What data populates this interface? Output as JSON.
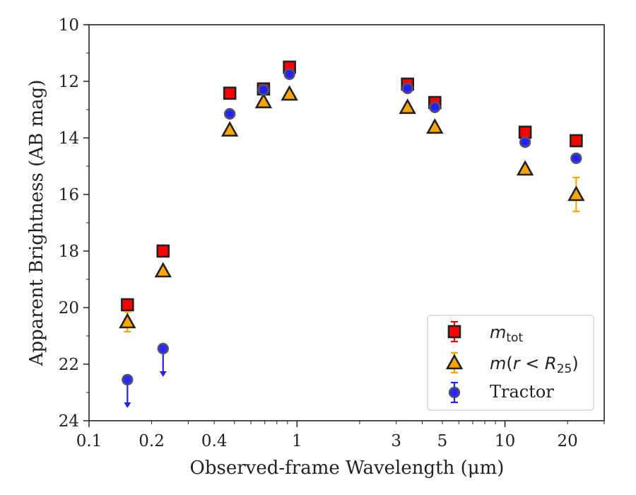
{
  "chart_data": {
    "type": "scatter",
    "xlabel": "Observed-frame Wavelength (μm)",
    "ylabel": "Apparent Brightness (AB mag)",
    "xscale": "log",
    "xlim": [
      0.1,
      30
    ],
    "ylim": [
      24,
      10
    ],
    "y_inverted": true,
    "x_ticks": [
      0.1,
      0.2,
      0.4,
      1,
      3,
      5,
      10,
      20
    ],
    "x_tick_labels": [
      "0.1",
      "0.2",
      "0.4",
      "1",
      "3",
      "5",
      "10",
      "20"
    ],
    "y_ticks": [
      10,
      12,
      14,
      16,
      18,
      20,
      22,
      24
    ],
    "y_tick_labels": [
      "10",
      "12",
      "14",
      "16",
      "18",
      "20",
      "22",
      "24"
    ],
    "grid": false,
    "legend_position": "lower-right",
    "colors": {
      "accent_red": "#ff0000",
      "accent_orange": "#ffa500",
      "accent_blue": "#2020ff",
      "axes": "#222222"
    },
    "series": [
      {
        "name": "m_tot",
        "legend_label": "mtot",
        "marker": "square",
        "color": "#ff0000",
        "errcolor": "#ff0000",
        "points": [
          {
            "x": 0.153,
            "y": 19.9,
            "err": 0.05
          },
          {
            "x": 0.227,
            "y": 18.0,
            "err": 0.05
          },
          {
            "x": 0.475,
            "y": 12.42,
            "err": 0.05
          },
          {
            "x": 0.69,
            "y": 12.27,
            "err": 0.05
          },
          {
            "x": 0.92,
            "y": 11.5,
            "err": 0.05
          },
          {
            "x": 3.4,
            "y": 12.1,
            "err": 0.05
          },
          {
            "x": 4.6,
            "y": 12.75,
            "err": 0.05
          },
          {
            "x": 12.5,
            "y": 13.8,
            "err": 0.05
          },
          {
            "x": 22.0,
            "y": 14.1,
            "err": 0.05
          }
        ]
      },
      {
        "name": "m(r < R25)",
        "legend_label": "m(r<R25)",
        "marker": "triangle",
        "color": "#ffa500",
        "errcolor": "#ffa500",
        "points": [
          {
            "x": 0.153,
            "y": 20.5,
            "err": 0.35
          },
          {
            "x": 0.227,
            "y": 18.7,
            "err": 0.1
          },
          {
            "x": 0.475,
            "y": 13.72,
            "err": 0.05
          },
          {
            "x": 0.69,
            "y": 12.72,
            "err": 0.05
          },
          {
            "x": 0.92,
            "y": 12.45,
            "err": 0.05
          },
          {
            "x": 3.4,
            "y": 12.92,
            "err": 0.05
          },
          {
            "x": 4.6,
            "y": 13.62,
            "err": 0.05
          },
          {
            "x": 12.5,
            "y": 15.1,
            "err": 0.05
          },
          {
            "x": 22.0,
            "y": 16.0,
            "err": 0.6
          }
        ]
      },
      {
        "name": "Tractor",
        "legend_label": "Tractor",
        "marker": "circle",
        "color": "#2020ff",
        "errcolor": "#2020ff",
        "points": [
          {
            "x": 0.153,
            "y": 22.55,
            "upper_limit": true
          },
          {
            "x": 0.227,
            "y": 21.45,
            "upper_limit": true
          },
          {
            "x": 0.475,
            "y": 13.15,
            "err": 0.05
          },
          {
            "x": 0.69,
            "y": 12.3,
            "err": 0.05
          },
          {
            "x": 0.92,
            "y": 11.75,
            "err": 0.05
          },
          {
            "x": 3.4,
            "y": 12.25,
            "err": 0.05
          },
          {
            "x": 4.6,
            "y": 12.92,
            "err": 0.05
          },
          {
            "x": 12.5,
            "y": 14.15,
            "err": 0.05
          },
          {
            "x": 22.0,
            "y": 14.72,
            "err": 0.05
          }
        ]
      }
    ]
  }
}
